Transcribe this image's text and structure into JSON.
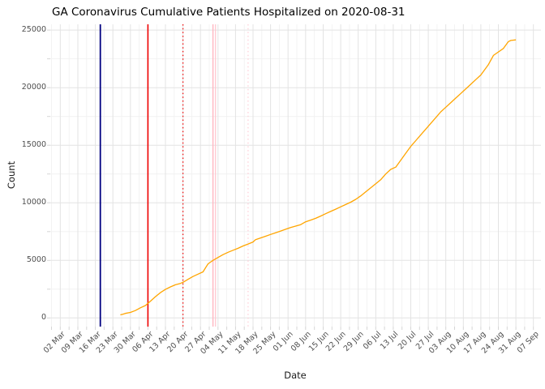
{
  "chart_data": {
    "type": "line",
    "title": "GA Coronavirus Cumulative Patients Hospitalized on 2020-08-31",
    "xlabel": "Date",
    "ylabel": "Count",
    "legend": "none",
    "grid": "major+minor",
    "x_domain": [
      "2020-02-27",
      "2020-09-10"
    ],
    "ylim": [
      -750,
      25500
    ],
    "y_major_ticks": [
      0,
      5000,
      10000,
      15000,
      20000,
      25000
    ],
    "y_minor_ticks": [
      2500,
      7500,
      12500,
      17500,
      22500
    ],
    "x_first_tick_date": "2020-03-02",
    "x_tick_step_days": 7,
    "x_tick_labels": [
      "02 Mar",
      "09 Mar",
      "16 Mar",
      "23 Mar",
      "30 Mar",
      "06 Apr",
      "13 Apr",
      "20 Apr",
      "27 Apr",
      "04 May",
      "11 May",
      "18 May",
      "25 May",
      "01 Jun",
      "08 Jun",
      "15 Jun",
      "22 Jun",
      "29 Jun",
      "06 Jul",
      "13 Jul",
      "20 Jul",
      "27 Jul",
      "03 Aug",
      "10 Aug",
      "17 Aug",
      "24 Aug",
      "31 Aug",
      "07 Sep"
    ],
    "series": [
      {
        "name": "cumulative-patients-hospitalized",
        "color": "#FFA500",
        "width": 1.3,
        "points": [
          [
            "2020-03-26",
            270
          ],
          [
            "2020-03-27",
            330
          ],
          [
            "2020-03-28",
            400
          ],
          [
            "2020-03-30",
            480
          ],
          [
            "2020-04-01",
            640
          ],
          [
            "2020-04-03",
            880
          ],
          [
            "2020-04-05",
            1080
          ],
          [
            "2020-04-07",
            1460
          ],
          [
            "2020-04-09",
            1850
          ],
          [
            "2020-04-11",
            2200
          ],
          [
            "2020-04-13",
            2480
          ],
          [
            "2020-04-15",
            2700
          ],
          [
            "2020-04-17",
            2880
          ],
          [
            "2020-04-19",
            3000
          ],
          [
            "2020-04-20",
            3090
          ],
          [
            "2020-04-22",
            3350
          ],
          [
            "2020-04-24",
            3600
          ],
          [
            "2020-04-26",
            3800
          ],
          [
            "2020-04-28",
            4000
          ],
          [
            "2020-04-29",
            4350
          ],
          [
            "2020-04-30",
            4700
          ],
          [
            "2020-05-01",
            4850
          ],
          [
            "2020-05-02",
            5000
          ],
          [
            "2020-05-04",
            5250
          ],
          [
            "2020-05-06",
            5500
          ],
          [
            "2020-05-08",
            5700
          ],
          [
            "2020-05-10",
            5880
          ],
          [
            "2020-05-12",
            6050
          ],
          [
            "2020-05-14",
            6250
          ],
          [
            "2020-05-16",
            6420
          ],
          [
            "2020-05-18",
            6600
          ],
          [
            "2020-05-19",
            6800
          ],
          [
            "2020-05-21",
            6950
          ],
          [
            "2020-05-23",
            7100
          ],
          [
            "2020-05-25",
            7250
          ],
          [
            "2020-05-27",
            7400
          ],
          [
            "2020-05-29",
            7550
          ],
          [
            "2020-05-31",
            7700
          ],
          [
            "2020-06-02",
            7850
          ],
          [
            "2020-06-04",
            7980
          ],
          [
            "2020-06-06",
            8100
          ],
          [
            "2020-06-08",
            8350
          ],
          [
            "2020-06-10",
            8500
          ],
          [
            "2020-06-12",
            8650
          ],
          [
            "2020-06-14",
            8850
          ],
          [
            "2020-06-16",
            9050
          ],
          [
            "2020-06-18",
            9250
          ],
          [
            "2020-06-20",
            9450
          ],
          [
            "2020-06-22",
            9650
          ],
          [
            "2020-06-24",
            9850
          ],
          [
            "2020-06-26",
            10050
          ],
          [
            "2020-06-28",
            10300
          ],
          [
            "2020-06-30",
            10600
          ],
          [
            "2020-07-02",
            10950
          ],
          [
            "2020-07-04",
            11300
          ],
          [
            "2020-07-06",
            11650
          ],
          [
            "2020-07-08",
            12000
          ],
          [
            "2020-07-10",
            12500
          ],
          [
            "2020-07-12",
            12900
          ],
          [
            "2020-07-14",
            13100
          ],
          [
            "2020-07-16",
            13700
          ],
          [
            "2020-07-18",
            14300
          ],
          [
            "2020-07-20",
            14900
          ],
          [
            "2020-07-22",
            15400
          ],
          [
            "2020-07-24",
            15900
          ],
          [
            "2020-07-26",
            16400
          ],
          [
            "2020-07-28",
            16900
          ],
          [
            "2020-07-30",
            17400
          ],
          [
            "2020-08-01",
            17900
          ],
          [
            "2020-08-03",
            18300
          ],
          [
            "2020-08-05",
            18700
          ],
          [
            "2020-08-07",
            19100
          ],
          [
            "2020-08-09",
            19500
          ],
          [
            "2020-08-11",
            19900
          ],
          [
            "2020-08-13",
            20300
          ],
          [
            "2020-08-15",
            20700
          ],
          [
            "2020-08-17",
            21100
          ],
          [
            "2020-08-18",
            21400
          ],
          [
            "2020-08-20",
            22000
          ],
          [
            "2020-08-22",
            22800
          ],
          [
            "2020-08-24",
            23100
          ],
          [
            "2020-08-26",
            23400
          ],
          [
            "2020-08-28",
            24000
          ],
          [
            "2020-08-29",
            24100
          ],
          [
            "2020-08-31",
            24150
          ]
        ]
      }
    ],
    "vlines": [
      {
        "name": "navy-solid-vline",
        "date": "2020-03-18",
        "color": "#000080",
        "style": "solid",
        "width": 1.8
      },
      {
        "name": "red-solid-vline",
        "date": "2020-04-06",
        "color": "#ee0000",
        "style": "solid",
        "width": 1.6
      },
      {
        "name": "red-dotted-vline",
        "date": "2020-04-20",
        "color": "#ee0000",
        "style": "dotted",
        "width": 1.2
      },
      {
        "name": "pink-solid-vline-1",
        "date": "2020-05-02",
        "color": "#ffb6c1",
        "style": "solid",
        "width": 1.4
      },
      {
        "name": "pink-solid-vline-2",
        "date": "2020-05-03",
        "color": "#ffc4cd",
        "style": "solid",
        "width": 1.2
      },
      {
        "name": "pink-dotted-vline",
        "date": "2020-05-16",
        "color": "#ffccd5",
        "style": "dotted",
        "width": 1.2
      }
    ]
  },
  "styles": {
    "grid_major": "#e3e3e3",
    "grid_minor": "#f0f0f0",
    "tick_mark": "#d6d6d6",
    "axis_text": "#4d4d4d",
    "background": "#ffffff"
  }
}
